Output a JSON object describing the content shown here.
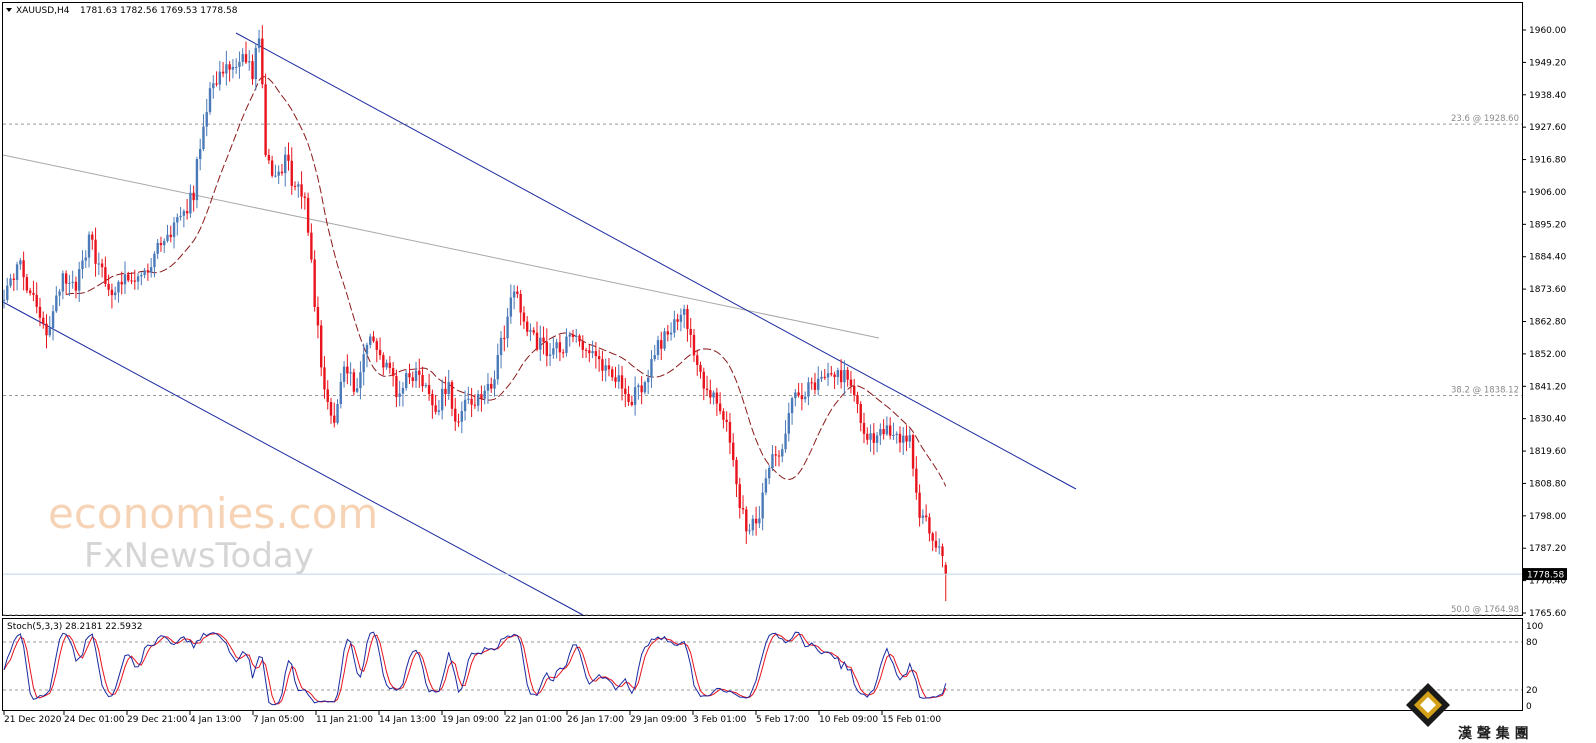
{
  "header": {
    "symbol": "XAUUSD,H4",
    "ohlc": "1781.63 1782.56 1769.53 1778.58"
  },
  "watermark": {
    "line1": "economies.com",
    "line2": "FxNewsToday"
  },
  "corner_logo": {
    "text": "漢 聲 集 團"
  },
  "colors": {
    "bull": "#4a7ab8",
    "bear": "#e8131c",
    "channel": "#1a2aa0",
    "trendline": "#a8a8a8",
    "ma": "#8b1a1a",
    "fib": "#9a9a9a",
    "price_line": "#bcd4e6",
    "stoch_main": "#1a2aa0",
    "stoch_signal": "#e8131c"
  },
  "chart_data": [
    {
      "type": "candlestick",
      "title": "XAUUSD,H4",
      "y_ticks": [
        "1960.00",
        "1949.20",
        "1938.40",
        "1927.60",
        "1916.80",
        "1906.00",
        "1895.20",
        "1884.40",
        "1873.60",
        "1862.80",
        "1852.00",
        "1841.20",
        "1830.40",
        "1819.60",
        "1808.80",
        "1798.00",
        "1787.20",
        "1776.40",
        "1765.60"
      ],
      "x_ticks": [
        "21 Dec 2020",
        "24 Dec 01:00",
        "29 Dec 21:00",
        "4 Jan 13:00",
        "7 Jan 05:00",
        "11 Jan 21:00",
        "14 Jan 13:00",
        "19 Jan 09:00",
        "22 Jan 01:00",
        "26 Jan 17:00",
        "29 Jan 09:00",
        "3 Feb 01:00",
        "5 Feb 17:00",
        "10 Feb 09:00",
        "15 Feb 01:00"
      ],
      "ylim": [
        1765.6,
        1960.0
      ],
      "current_price": 1778.58,
      "current_price_label": "1778.58",
      "fib_levels": [
        {
          "level": 23.6,
          "price": 1928.6,
          "label": "23.6 @ 1928.60"
        },
        {
          "level": 38.2,
          "price": 1838.12,
          "label": "38.2 @ 1838.12"
        },
        {
          "level": 50.0,
          "price": 1764.98,
          "label": "50.0 @ 1764.98"
        }
      ],
      "anchor_closes": [
        [
          0,
          1870
        ],
        [
          5,
          1882
        ],
        [
          10,
          1866
        ],
        [
          13,
          1860
        ],
        [
          18,
          1878
        ],
        [
          22,
          1874
        ],
        [
          26,
          1890
        ],
        [
          30,
          1880
        ],
        [
          34,
          1872
        ],
        [
          38,
          1878
        ],
        [
          44,
          1880
        ],
        [
          48,
          1891
        ],
        [
          52,
          1894
        ],
        [
          56,
          1900
        ],
        [
          58,
          1906
        ],
        [
          61,
          1930
        ],
        [
          64,
          1944
        ],
        [
          68,
          1946
        ],
        [
          72,
          1952
        ],
        [
          76,
          1945
        ],
        [
          78,
          1958
        ],
        [
          80,
          1920
        ],
        [
          83,
          1910
        ],
        [
          86,
          1917
        ],
        [
          89,
          1908
        ],
        [
          92,
          1906
        ],
        [
          95,
          1870
        ],
        [
          98,
          1840
        ],
        [
          101,
          1828
        ],
        [
          104,
          1846
        ],
        [
          108,
          1840
        ],
        [
          112,
          1858
        ],
        [
          116,
          1850
        ],
        [
          120,
          1840
        ],
        [
          124,
          1846
        ],
        [
          128,
          1844
        ],
        [
          132,
          1834
        ],
        [
          136,
          1842
        ],
        [
          138,
          1828
        ],
        [
          142,
          1836
        ],
        [
          146,
          1838
        ],
        [
          150,
          1844
        ],
        [
          153,
          1860
        ],
        [
          156,
          1872
        ],
        [
          160,
          1860
        ],
        [
          164,
          1855
        ],
        [
          168,
          1852
        ],
        [
          172,
          1856
        ],
        [
          176,
          1856
        ],
        [
          180,
          1852
        ],
        [
          184,
          1846
        ],
        [
          188,
          1843
        ],
        [
          192,
          1837
        ],
        [
          196,
          1842
        ],
        [
          200,
          1855
        ],
        [
          204,
          1860
        ],
        [
          208,
          1864
        ],
        [
          212,
          1849
        ],
        [
          215,
          1840
        ],
        [
          218,
          1838
        ],
        [
          221,
          1830
        ],
        [
          225,
          1800
        ],
        [
          228,
          1792
        ],
        [
          231,
          1800
        ],
        [
          235,
          1816
        ],
        [
          238,
          1820
        ],
        [
          241,
          1835
        ],
        [
          245,
          1840
        ],
        [
          249,
          1842
        ],
        [
          253,
          1845
        ],
        [
          256,
          1844
        ],
        [
          259,
          1843
        ],
        [
          262,
          1828
        ],
        [
          266,
          1822
        ],
        [
          270,
          1826
        ],
        [
          274,
          1824
        ],
        [
          277,
          1823
        ],
        [
          280,
          1798
        ],
        [
          283,
          1794
        ],
        [
          286,
          1788
        ],
        [
          288,
          1778.58
        ]
      ]
    },
    {
      "type": "line",
      "title": "Stoch(5,3,3) 28.2181 22.5932",
      "series_names": [
        "28.2181",
        "22.5932"
      ],
      "y_ticks": [
        "100",
        "80",
        "20",
        "0"
      ],
      "ylim": [
        0,
        100
      ],
      "levels": [
        20,
        80
      ],
      "series": [
        {
          "name": "main",
          "last": 28.2181
        },
        {
          "name": "signal",
          "last": 22.5932
        }
      ]
    }
  ]
}
